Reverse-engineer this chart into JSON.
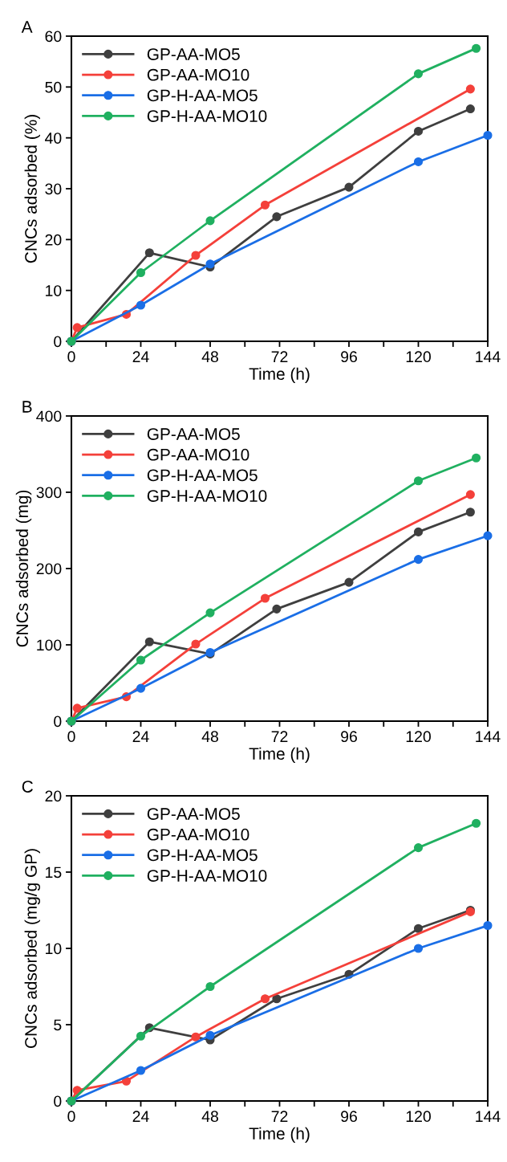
{
  "chart_data": [
    {
      "type": "line",
      "title": "A",
      "xlabel": "Time (h)",
      "ylabel": "CNCs adsorbed (%)",
      "xlim": [
        0,
        144
      ],
      "ylim": [
        0,
        60
      ],
      "xticks": [
        0,
        {
          "value": 12,
          "label": null
        },
        24,
        {
          "value": 36,
          "label": null
        },
        48,
        {
          "value": 60,
          "label": null
        },
        72,
        {
          "value": 84,
          "label": null
        },
        96,
        {
          "value": 108,
          "label": null
        },
        120,
        {
          "value": 132,
          "label": null
        },
        144
      ],
      "yticks": [
        0,
        10,
        20,
        30,
        40,
        50,
        60
      ],
      "grid": false,
      "legend": "top left",
      "marker": "circle",
      "line_style": "solid",
      "series": [
        {
          "name": "GP-AA-MO5",
          "color": "#3f3f3f",
          "x": [
            0,
            27,
            48,
            71,
            96,
            120,
            138
          ],
          "values": [
            0,
            17.4,
            14.6,
            24.5,
            30.3,
            41.3,
            45.7
          ]
        },
        {
          "name": "GP-AA-MO10",
          "color": "#f4403a",
          "x": [
            0,
            2,
            19,
            43,
            67,
            138
          ],
          "values": [
            0,
            2.7,
            5.3,
            16.9,
            26.8,
            49.6
          ]
        },
        {
          "name": "GP-H-AA-MO5",
          "color": "#1a6ee6",
          "x": [
            0,
            24,
            48,
            120,
            144
          ],
          "values": [
            0,
            7.1,
            15.2,
            35.3,
            40.5
          ]
        },
        {
          "name": "GP-H-AA-MO10",
          "color": "#20b060",
          "x": [
            0,
            24,
            48,
            120,
            140
          ],
          "values": [
            0,
            13.5,
            23.7,
            52.6,
            57.6
          ]
        }
      ]
    },
    {
      "type": "line",
      "title": "B",
      "xlabel": "Time (h)",
      "ylabel": "CNCs adsorbed (mg)",
      "xlim": [
        0,
        144
      ],
      "ylim": [
        0,
        400
      ],
      "xticks": [
        0,
        {
          "value": 12,
          "label": null
        },
        24,
        {
          "value": 36,
          "label": null
        },
        48,
        {
          "value": 60,
          "label": null
        },
        72,
        {
          "value": 84,
          "label": null
        },
        96,
        {
          "value": 108,
          "label": null
        },
        120,
        {
          "value": 132,
          "label": null
        },
        144
      ],
      "yticks": [
        0,
        100,
        200,
        300,
        400
      ],
      "grid": false,
      "legend": "top left",
      "marker": "circle",
      "line_style": "solid",
      "series": [
        {
          "name": "GP-AA-MO5",
          "color": "#3f3f3f",
          "x": [
            0,
            27,
            48,
            71,
            96,
            120,
            138
          ],
          "values": [
            0,
            104,
            88,
            147,
            182,
            248,
            274
          ]
        },
        {
          "name": "GP-AA-MO10",
          "color": "#f4403a",
          "x": [
            0,
            2,
            19,
            43,
            67,
            138
          ],
          "values": [
            0,
            17,
            32,
            101,
            161,
            297
          ]
        },
        {
          "name": "GP-H-AA-MO5",
          "color": "#1a6ee6",
          "x": [
            0,
            24,
            48,
            120,
            144
          ],
          "values": [
            0,
            43,
            90,
            212,
            243
          ]
        },
        {
          "name": "GP-H-AA-MO10",
          "color": "#20b060",
          "x": [
            0,
            24,
            48,
            120,
            140
          ],
          "values": [
            0,
            80,
            142,
            315,
            345
          ]
        }
      ]
    },
    {
      "type": "line",
      "title": "C",
      "xlabel": "Time (h)",
      "ylabel": "CNCs adsorbed (mg/g GP)",
      "xlim": [
        0,
        144
      ],
      "ylim": [
        0,
        20
      ],
      "xticks": [
        0,
        {
          "value": 12,
          "label": null
        },
        24,
        {
          "value": 36,
          "label": null
        },
        48,
        {
          "value": 60,
          "label": null
        },
        72,
        {
          "value": 84,
          "label": null
        },
        96,
        {
          "value": 108,
          "label": null
        },
        120,
        {
          "value": 132,
          "label": null
        },
        144
      ],
      "yticks": [
        0,
        5,
        10,
        15,
        20
      ],
      "grid": false,
      "legend": "top left",
      "marker": "circle",
      "line_style": "solid",
      "series": [
        {
          "name": "GP-AA-MO5",
          "color": "#3f3f3f",
          "x": [
            0,
            27,
            48,
            71,
            96,
            120,
            138
          ],
          "values": [
            0,
            4.8,
            4.0,
            6.7,
            8.3,
            11.3,
            12.5
          ]
        },
        {
          "name": "GP-AA-MO10",
          "color": "#f4403a",
          "x": [
            0,
            2,
            19,
            43,
            67,
            138
          ],
          "values": [
            0,
            0.7,
            1.3,
            4.2,
            6.7,
            12.4
          ]
        },
        {
          "name": "GP-H-AA-MO5",
          "color": "#1a6ee6",
          "x": [
            0,
            24,
            48,
            120,
            144
          ],
          "values": [
            0,
            2.0,
            4.3,
            10.0,
            11.5
          ]
        },
        {
          "name": "GP-H-AA-MO10",
          "color": "#20b060",
          "x": [
            0,
            24,
            48,
            120,
            140
          ],
          "values": [
            0,
            4.25,
            7.5,
            16.6,
            18.2
          ]
        }
      ]
    }
  ]
}
